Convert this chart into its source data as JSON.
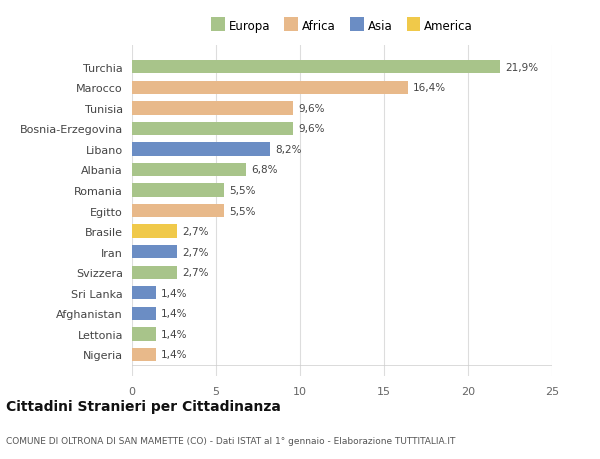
{
  "categories": [
    "Nigeria",
    "Lettonia",
    "Afghanistan",
    "Sri Lanka",
    "Svizzera",
    "Iran",
    "Brasile",
    "Egitto",
    "Romania",
    "Albania",
    "Libano",
    "Bosnia-Erzegovina",
    "Tunisia",
    "Marocco",
    "Turchia"
  ],
  "values": [
    1.4,
    1.4,
    1.4,
    1.4,
    2.7,
    2.7,
    2.7,
    5.5,
    5.5,
    6.8,
    8.2,
    9.6,
    9.6,
    16.4,
    21.9
  ],
  "bar_colors": [
    "#e8b98a",
    "#a8c48a",
    "#6b8dc4",
    "#6b8dc4",
    "#a8c48a",
    "#6b8dc4",
    "#f0c94a",
    "#e8b98a",
    "#a8c48a",
    "#a8c48a",
    "#6b8dc4",
    "#a8c48a",
    "#e8b98a",
    "#e8b98a",
    "#a8c48a"
  ],
  "xlim": [
    0,
    25
  ],
  "xticks": [
    0,
    5,
    10,
    15,
    20,
    25
  ],
  "title": "Cittadini Stranieri per Cittadinanza",
  "subtitle": "COMUNE DI OLTRONA DI SAN MAMETTE (CO) - Dati ISTAT al 1° gennaio - Elaborazione TUTTITALIA.IT",
  "background_color": "#ffffff",
  "grid_color": "#dddddd",
  "legend_labels": [
    "Europa",
    "Africa",
    "Asia",
    "America"
  ],
  "legend_colors": [
    "#a8c48a",
    "#e8b98a",
    "#6b8dc4",
    "#f0c94a"
  ]
}
